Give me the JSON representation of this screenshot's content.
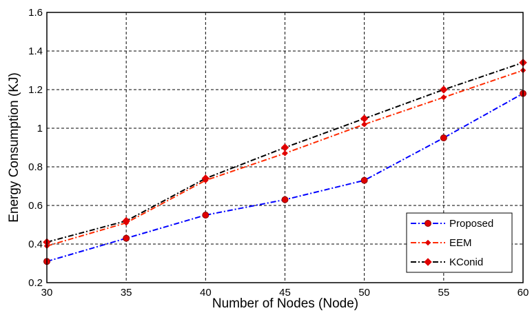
{
  "chart_data": {
    "type": "line",
    "title": "",
    "xlabel": "Number of Nodes (Node)",
    "ylabel": "Energy Consumption (KJ)",
    "x": [
      30,
      35,
      40,
      45,
      50,
      55,
      60
    ],
    "xticks": [
      "30",
      "35",
      "40",
      "45",
      "50",
      "55",
      "60"
    ],
    "yticks": [
      "0.2",
      "0.4",
      "0.6",
      "0.8",
      "1",
      "1.2",
      "1.4",
      "1.6"
    ],
    "xlim": [
      30,
      60
    ],
    "ylim": [
      0.2,
      1.6
    ],
    "grid": true,
    "legend_position": "bottom-right",
    "series": [
      {
        "name": "Proposed",
        "color": "#0000ff",
        "marker_color": "#e00000",
        "marker": "circle",
        "values": [
          0.31,
          0.43,
          0.55,
          0.63,
          0.73,
          0.95,
          1.18
        ]
      },
      {
        "name": "EEM",
        "color": "#ff2a00",
        "marker_color": "#e00000",
        "marker": "diamond-small",
        "values": [
          0.39,
          0.51,
          0.73,
          0.87,
          1.02,
          1.16,
          1.3
        ]
      },
      {
        "name": "KConid",
        "color": "#000000",
        "marker_color": "#e00000",
        "marker": "diamond",
        "values": [
          0.41,
          0.52,
          0.74,
          0.9,
          1.05,
          1.2,
          1.34
        ]
      }
    ]
  }
}
